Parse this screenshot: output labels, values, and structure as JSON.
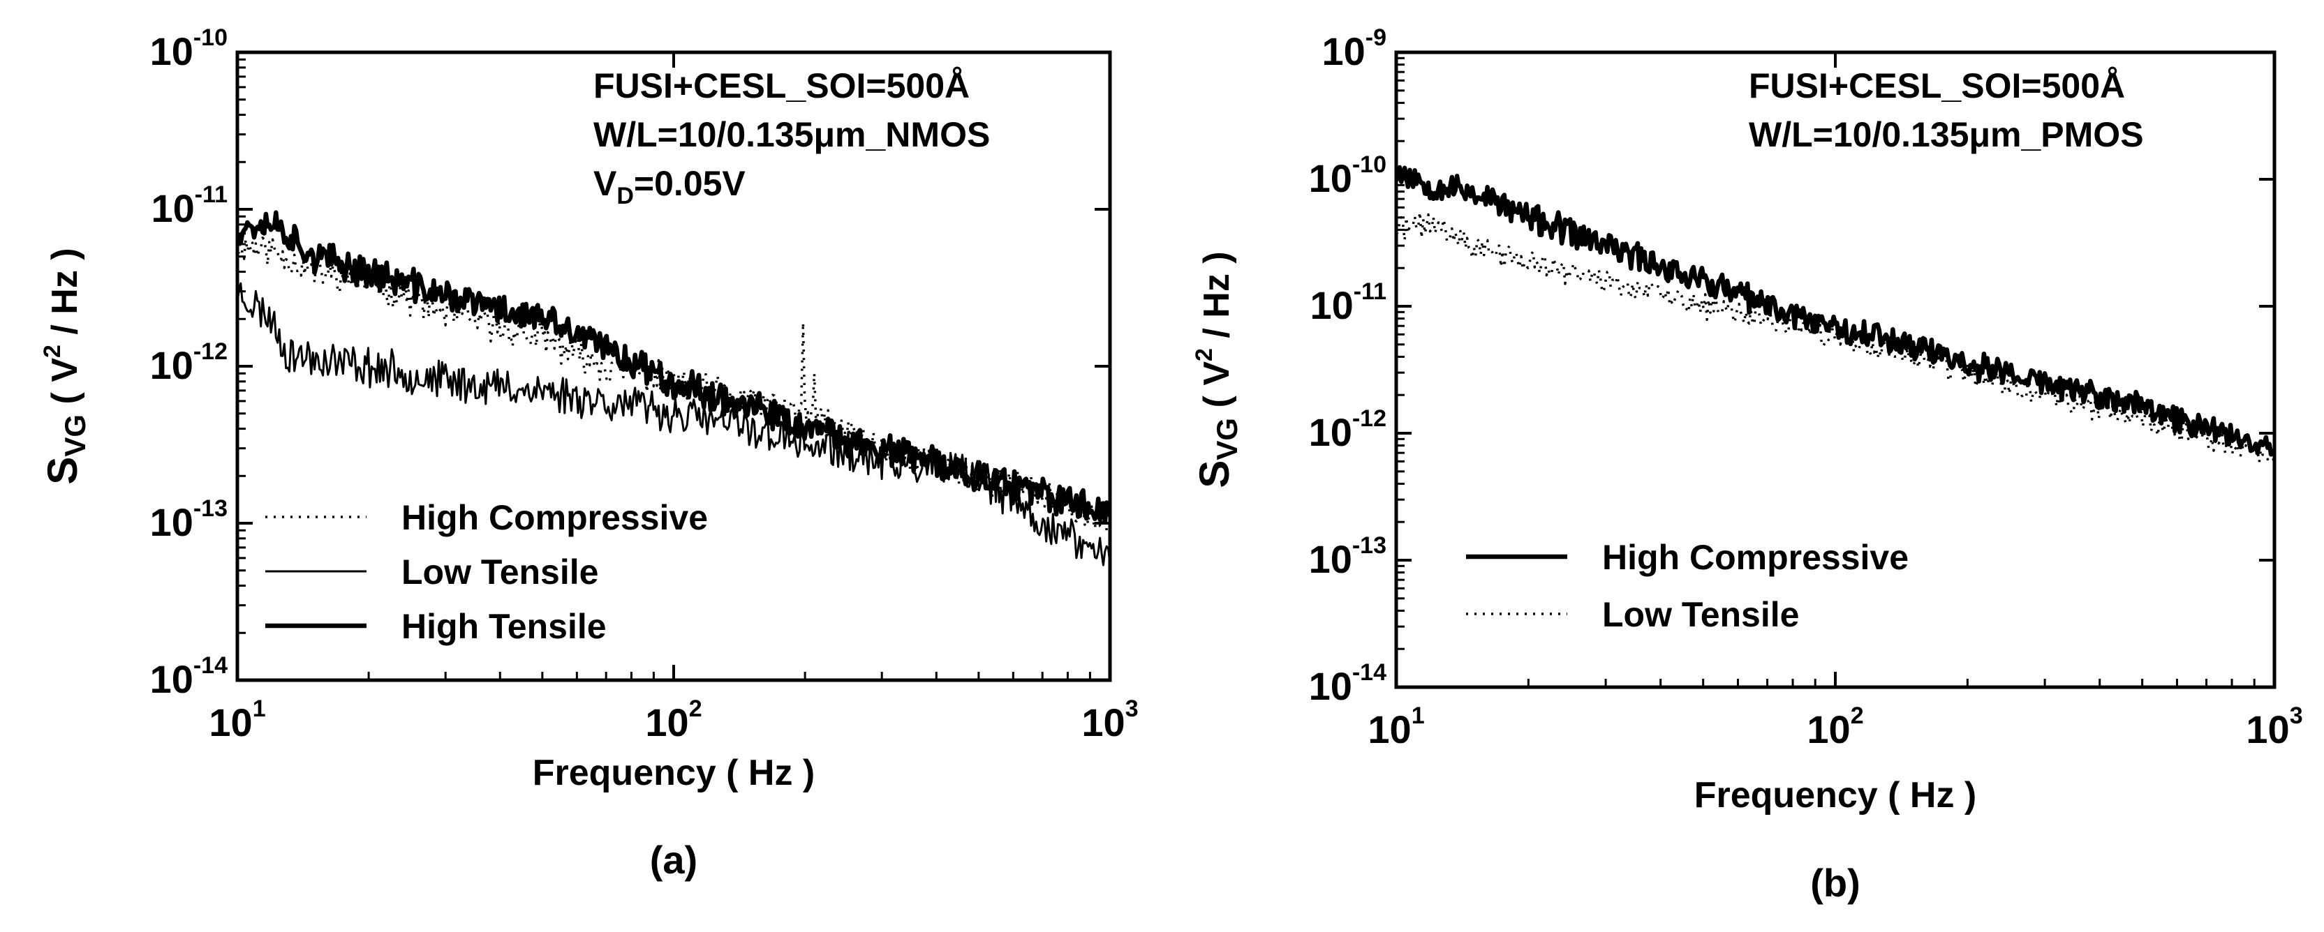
{
  "chart_data": [
    {
      "id": "a",
      "type": "line",
      "panel_label": "(a)",
      "xscale": "log",
      "yscale": "log",
      "xlim": [
        10,
        1000
      ],
      "ylim": [
        1e-14,
        1e-10
      ],
      "xlabel": "Frequency ( Hz )",
      "ylabel": {
        "main": "S",
        "sub": "VG",
        "rest": " ( V",
        "sup": "2",
        "end": " / Hz )"
      },
      "xticks": [
        {
          "base": "10",
          "exp": "1"
        },
        {
          "base": "10",
          "exp": "2"
        },
        {
          "base": "10",
          "exp": "3"
        }
      ],
      "yticks": [
        {
          "base": "10",
          "exp": "-10"
        },
        {
          "base": "10",
          "exp": "-11"
        },
        {
          "base": "10",
          "exp": "-12"
        },
        {
          "base": "10",
          "exp": "-13"
        },
        {
          "base": "10",
          "exp": "-14"
        }
      ],
      "annotations": [
        {
          "text": "FUSI+CESL_SOI=500Å"
        },
        {
          "text": "W/L=10/0.135μm_NMOS"
        },
        {
          "text": "V",
          "sub": "D",
          "rest": "=0.05V"
        }
      ],
      "legend_position": "lower-left",
      "series": [
        {
          "name": "High Compressive",
          "style": "dotted",
          "noise": 0.09,
          "seed": 11,
          "x": [
            10,
            12,
            15,
            20,
            30,
            50,
            70,
            100,
            150,
            200,
            300,
            500,
            700,
            1000
          ],
          "y": [
            6e-12,
            5.5e-12,
            4e-12,
            3.5e-12,
            2.2e-12,
            1.5e-12,
            1e-12,
            8e-13,
            6e-13,
            5e-13,
            3e-13,
            2e-13,
            1.5e-13,
            1e-13
          ],
          "spikes": [
            {
              "x": 198,
              "y": 1.9e-12
            },
            {
              "x": 210,
              "y": 9e-13
            }
          ]
        },
        {
          "name": "Low Tensile",
          "style": "thin",
          "noise": 0.11,
          "seed": 23,
          "x": [
            10,
            12,
            13,
            20,
            30,
            50,
            70,
            100,
            150,
            200,
            300,
            500,
            700,
            1000
          ],
          "y": [
            3e-12,
            2e-12,
            1.2e-12,
            1e-12,
            8e-13,
            7e-13,
            6e-13,
            5e-13,
            4e-13,
            3.2e-13,
            2.5e-13,
            2e-13,
            1e-13,
            6e-14
          ],
          "spikes": []
        },
        {
          "name": "High Tensile",
          "style": "thick",
          "noise": 0.09,
          "seed": 37,
          "x": [
            10,
            12,
            15,
            20,
            30,
            50,
            70,
            100,
            150,
            200,
            300,
            500,
            700,
            1000
          ],
          "y": [
            7.5e-12,
            8.5e-12,
            5e-12,
            4e-12,
            2.8e-12,
            2e-12,
            1.3e-12,
            8e-13,
            5.5e-13,
            4e-13,
            3e-13,
            2e-13,
            1.5e-13,
            1.2e-13
          ],
          "spikes": []
        }
      ]
    },
    {
      "id": "b",
      "type": "line",
      "panel_label": "(b)",
      "xscale": "log",
      "yscale": "log",
      "xlim": [
        10,
        1000
      ],
      "ylim": [
        1e-14,
        1e-09
      ],
      "xlabel": "Frequency ( Hz )",
      "ylabel": {
        "main": "S",
        "sub": "VG",
        "rest": " ( V",
        "sup": "2",
        "end": " / Hz )"
      },
      "xticks": [
        {
          "base": "10",
          "exp": "1"
        },
        {
          "base": "10",
          "exp": "2"
        },
        {
          "base": "10",
          "exp": "3"
        }
      ],
      "yticks": [
        {
          "base": "10",
          "exp": "-9"
        },
        {
          "base": "10",
          "exp": "-10"
        },
        {
          "base": "10",
          "exp": "-11"
        },
        {
          "base": "10",
          "exp": "-12"
        },
        {
          "base": "10",
          "exp": "-13"
        },
        {
          "base": "10",
          "exp": "-14"
        }
      ],
      "annotations": [
        {
          "text": "FUSI+CESL_SOI=500Å"
        },
        {
          "text": "W/L=10/0.135μm_PMOS"
        }
      ],
      "legend_position": "lower-left",
      "series": [
        {
          "name": "High Compressive",
          "style": "thick",
          "noise": 0.1,
          "seed": 53,
          "x": [
            10,
            12,
            15,
            20,
            30,
            50,
            70,
            100,
            150,
            200,
            300,
            500,
            700,
            1000
          ],
          "y": [
            1.2e-10,
            9e-11,
            8e-11,
            5e-11,
            3e-11,
            1.6e-11,
            1e-11,
            7e-12,
            5e-12,
            3.5e-12,
            2.5e-12,
            1.6e-12,
            1.1e-12,
            8e-13
          ],
          "spikes": []
        },
        {
          "name": "Low Tensile",
          "style": "dotted",
          "noise": 0.09,
          "seed": 71,
          "x": [
            10,
            12,
            15,
            20,
            30,
            50,
            70,
            100,
            150,
            200,
            300,
            500,
            700,
            1000
          ],
          "y": [
            4e-11,
            4.5e-11,
            3e-11,
            2.2e-11,
            1.6e-11,
            1e-11,
            8e-12,
            5.5e-12,
            4e-12,
            3e-12,
            2e-12,
            1.3e-12,
            9e-13,
            6e-13
          ],
          "spikes": []
        }
      ]
    }
  ]
}
